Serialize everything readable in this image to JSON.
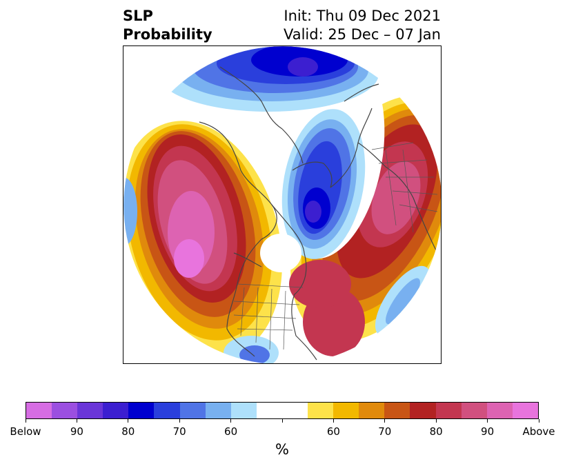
{
  "title": {
    "left_line1": "SLP",
    "left_line2": "Probability",
    "right_line1": "Init: Thu 09 Dec 2021",
    "right_line2": "Valid: 25 Dec – 07 Jan"
  },
  "colorbar": {
    "colors": [
      "#d66de3",
      "#9b4fe0",
      "#6a35d8",
      "#3c1fd0",
      "#0000cf",
      "#2a3fdc",
      "#5074e6",
      "#78b0f0",
      "#aee0fb",
      "#ffffff",
      "#ffffff",
      "#fde24a",
      "#f2b800",
      "#e08a0c",
      "#c85515",
      "#b22222",
      "#c33650",
      "#d1507f",
      "#dd63b2",
      "#e874dd"
    ],
    "tick_labels": [
      "Below",
      "90",
      "80",
      "70",
      "60",
      "",
      "60",
      "70",
      "80",
      "90",
      "Above"
    ],
    "unit": "%"
  }
}
